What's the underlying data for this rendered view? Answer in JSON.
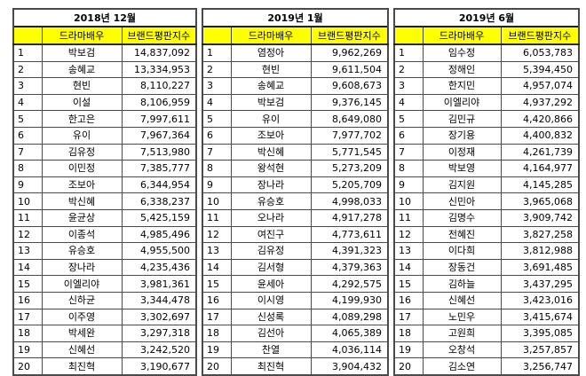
{
  "tables": [
    {
      "title": "2018년 12월",
      "headers": {
        "rank": "",
        "name": "드라마배우",
        "score": "브랜드평판지수"
      },
      "rows": [
        {
          "rank": "1",
          "name": "박보검",
          "score": "14,837,092"
        },
        {
          "rank": "2",
          "name": "송혜교",
          "score": "13,334,953"
        },
        {
          "rank": "3",
          "name": "현빈",
          "score": "8,110,227"
        },
        {
          "rank": "4",
          "name": "이설",
          "score": "8,106,959"
        },
        {
          "rank": "5",
          "name": "한고은",
          "score": "7,997,611"
        },
        {
          "rank": "6",
          "name": "유이",
          "score": "7,967,364"
        },
        {
          "rank": "7",
          "name": "김유정",
          "score": "7,513,980"
        },
        {
          "rank": "8",
          "name": "이민정",
          "score": "7,385,777"
        },
        {
          "rank": "9",
          "name": "조보아",
          "score": "6,344,954"
        },
        {
          "rank": "10",
          "name": "박신혜",
          "score": "6,338,237"
        },
        {
          "rank": "11",
          "name": "윤균상",
          "score": "5,425,159"
        },
        {
          "rank": "12",
          "name": "이종석",
          "score": "4,985,496"
        },
        {
          "rank": "13",
          "name": "유승호",
          "score": "4,955,500"
        },
        {
          "rank": "14",
          "name": "장나라",
          "score": "4,235,436"
        },
        {
          "rank": "15",
          "name": "이엘리야",
          "score": "3,981,361"
        },
        {
          "rank": "16",
          "name": "신하균",
          "score": "3,344,478"
        },
        {
          "rank": "17",
          "name": "이주영",
          "score": "3,302,697"
        },
        {
          "rank": "18",
          "name": "박세완",
          "score": "3,297,318"
        },
        {
          "rank": "19",
          "name": "신혜선",
          "score": "3,242,520"
        },
        {
          "rank": "20",
          "name": "최진혁",
          "score": "3,190,677"
        }
      ]
    },
    {
      "title": "2019년 1월",
      "headers": {
        "rank": "",
        "name": "드라마배우",
        "score": "브랜드평판지수"
      },
      "rows": [
        {
          "rank": "1",
          "name": "염정아",
          "score": "9,962,269"
        },
        {
          "rank": "2",
          "name": "현빈",
          "score": "9,611,504"
        },
        {
          "rank": "3",
          "name": "송혜교",
          "score": "9,608,673"
        },
        {
          "rank": "4",
          "name": "박보검",
          "score": "9,376,145"
        },
        {
          "rank": "5",
          "name": "유이",
          "score": "8,649,080"
        },
        {
          "rank": "6",
          "name": "조보아",
          "score": "7,977,702"
        },
        {
          "rank": "7",
          "name": "박신혜",
          "score": "5,771,545"
        },
        {
          "rank": "8",
          "name": "왕석현",
          "score": "5,273,209"
        },
        {
          "rank": "9",
          "name": "장나라",
          "score": "5,205,709"
        },
        {
          "rank": "10",
          "name": "유승호",
          "score": "4,998,033"
        },
        {
          "rank": "11",
          "name": "오나라",
          "score": "4,917,278"
        },
        {
          "rank": "12",
          "name": "여진구",
          "score": "4,773,611"
        },
        {
          "rank": "13",
          "name": "김유정",
          "score": "4,391,323"
        },
        {
          "rank": "14",
          "name": "김서형",
          "score": "4,379,363"
        },
        {
          "rank": "15",
          "name": "윤세아",
          "score": "4,292,575"
        },
        {
          "rank": "16",
          "name": "이시영",
          "score": "4,199,930"
        },
        {
          "rank": "17",
          "name": "신성록",
          "score": "4,089,298"
        },
        {
          "rank": "18",
          "name": "김선아",
          "score": "4,065,389"
        },
        {
          "rank": "19",
          "name": "찬열",
          "score": "4,036,114"
        },
        {
          "rank": "20",
          "name": "최진혁",
          "score": "3,904,432"
        }
      ]
    },
    {
      "title": "2019년 6월",
      "headers": {
        "rank": "",
        "name": "드라마배우",
        "score": "브랜드평판지수"
      },
      "rows": [
        {
          "rank": "1",
          "name": "임수정",
          "score": "6,053,783"
        },
        {
          "rank": "2",
          "name": "정해인",
          "score": "5,394,450"
        },
        {
          "rank": "3",
          "name": "한지민",
          "score": "4,957,074"
        },
        {
          "rank": "4",
          "name": "이엘리야",
          "score": "4,937,292"
        },
        {
          "rank": "5",
          "name": "김민규",
          "score": "4,420,866"
        },
        {
          "rank": "6",
          "name": "장기용",
          "score": "4,400,832"
        },
        {
          "rank": "7",
          "name": "이정재",
          "score": "4,261,739"
        },
        {
          "rank": "8",
          "name": "박보영",
          "score": "4,164,977"
        },
        {
          "rank": "9",
          "name": "김지원",
          "score": "4,145,285"
        },
        {
          "rank": "10",
          "name": "신민아",
          "score": "3,965,068"
        },
        {
          "rank": "11",
          "name": "김명수",
          "score": "3,909,742"
        },
        {
          "rank": "12",
          "name": "전혜진",
          "score": "3,827,258"
        },
        {
          "rank": "13",
          "name": "이다희",
          "score": "3,812,988"
        },
        {
          "rank": "14",
          "name": "장동건",
          "score": "3,691,485"
        },
        {
          "rank": "15",
          "name": "김하늘",
          "score": "3,437,295"
        },
        {
          "rank": "16",
          "name": "신혜선",
          "score": "3,423,016"
        },
        {
          "rank": "17",
          "name": "노민우",
          "score": "3,415,674"
        },
        {
          "rank": "18",
          "name": "고원희",
          "score": "3,395,085"
        },
        {
          "rank": "19",
          "name": "오창석",
          "score": "3,257,857"
        },
        {
          "rank": "20",
          "name": "김소연",
          "score": "3,256,747"
        }
      ]
    }
  ],
  "colors": {
    "header_bg": "#ffff00",
    "border": "#4a4a4a"
  }
}
